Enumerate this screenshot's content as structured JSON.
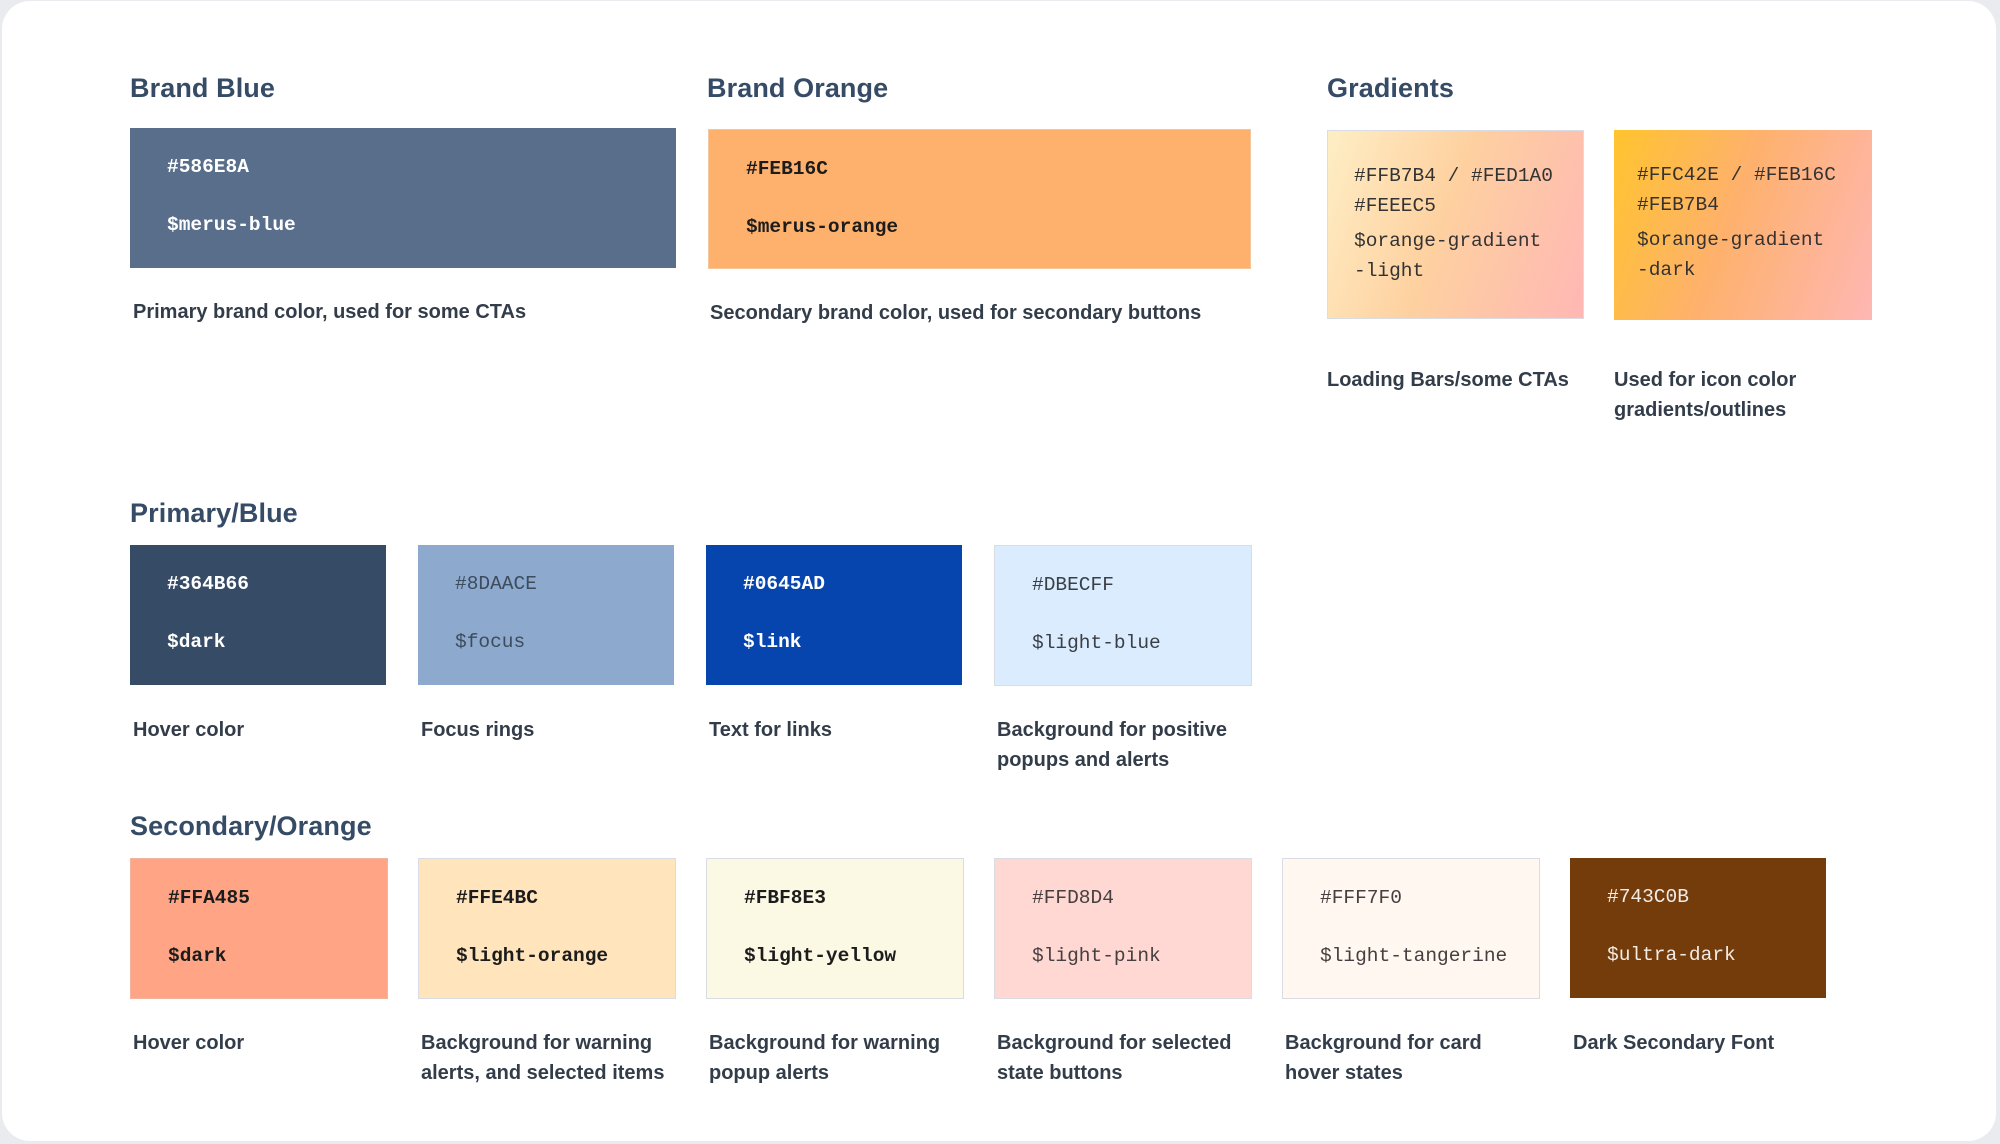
{
  "brand": {
    "blue": {
      "title": "Brand Blue",
      "hex": "#586E8A",
      "var": "$merus-blue",
      "desc": "Primary brand color, used for some CTAs",
      "color": "#586E8A"
    },
    "orange": {
      "title": "Brand Orange",
      "hex": "#FEB16C",
      "var": "$merus-orange",
      "desc": "Secondary brand color, used for secondary buttons",
      "color": "#FEB16C"
    }
  },
  "gradients": {
    "title": "Gradients",
    "items": [
      {
        "hex": "#FFB7B4 / #FED1A0\n#FEEEC5",
        "var": "$orange-gradient\n-light",
        "desc": "Loading Bars/some CTAs",
        "colors": [
          "#FEEEC5",
          "#FED1A0",
          "#FFB7B4"
        ]
      },
      {
        "hex": "#FFC42E / #FEB16C\n#FEB7B4",
        "var": "$orange-gradient\n-dark",
        "desc": "Used for icon color gradients/outlines",
        "colors": [
          "#FFC42E",
          "#FEB16C",
          "#FEB7B4"
        ]
      }
    ]
  },
  "primary": {
    "title": "Primary/Blue",
    "items": [
      {
        "hex": "#364B66",
        "var": "$dark",
        "desc": "Hover color",
        "color": "#364B66"
      },
      {
        "hex": "#8DAACE",
        "var": "$focus",
        "desc": "Focus rings",
        "color": "#8DAACE"
      },
      {
        "hex": "#0645AD",
        "var": "$link",
        "desc": "Text for links",
        "color": "#0645AD"
      },
      {
        "hex": "#DBECFF",
        "var": "$light-blue",
        "desc": "Background for positive popups and alerts",
        "color": "#DBECFF"
      }
    ]
  },
  "secondary": {
    "title": "Secondary/Orange",
    "items": [
      {
        "hex": "#FFA485",
        "var": "$dark",
        "desc": "Hover color",
        "color": "#FFA485"
      },
      {
        "hex": "#FFE4BC",
        "var": "$light-orange",
        "desc": "Background for warning alerts, and selected items",
        "color": "#FFE4BC"
      },
      {
        "hex": "#FBF8E3",
        "var": "$light-yellow",
        "desc": "Background for warning popup alerts",
        "color": "#FBF8E3"
      },
      {
        "hex": "#FFD8D4",
        "var": "$light-pink",
        "desc": "Background for selected state buttons",
        "color": "#FFD8D4"
      },
      {
        "hex": "#FFF7F0",
        "var": "$light-tangerine",
        "desc": "Background for card hover states",
        "color": "#FFF7F0"
      },
      {
        "hex": "#743C0B",
        "var": "$ultra-dark",
        "desc": "Dark Secondary Font",
        "color": "#743C0B"
      }
    ]
  }
}
